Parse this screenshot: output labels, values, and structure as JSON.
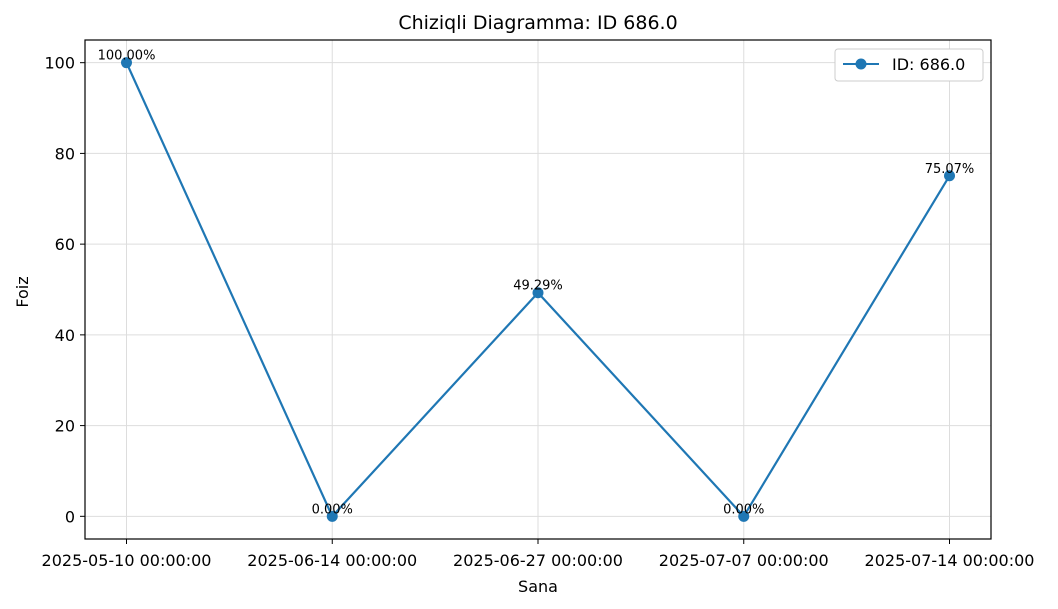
{
  "chart_data": {
    "type": "line",
    "title": "Chiziqli Diagramma: ID 686.0",
    "xlabel": "Sana",
    "ylabel": "Foiz",
    "categories": [
      "2025-05-10 00:00:00",
      "2025-06-14 00:00:00",
      "2025-06-27 00:00:00",
      "2025-07-07 00:00:00",
      "2025-07-14 00:00:00"
    ],
    "series": [
      {
        "name": "ID: 686.0",
        "values": [
          100.0,
          0.0,
          49.29,
          0.0,
          75.07
        ],
        "labels": [
          "100.00%",
          "0.00%",
          "49.29%",
          "0.00%",
          "75.07%"
        ],
        "color": "#1f77b4"
      }
    ],
    "ylim": [
      -5,
      105
    ],
    "yticks": [
      0,
      20,
      40,
      60,
      80,
      100
    ],
    "grid": true,
    "legend_position": "top-right"
  }
}
